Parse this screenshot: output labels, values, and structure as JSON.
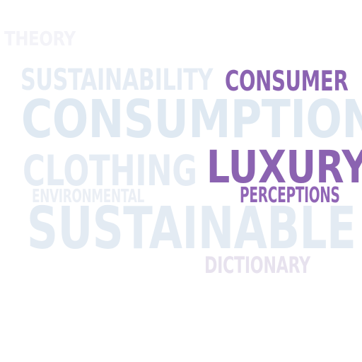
{
  "word_cloud": {
    "words": [
      {
        "key": "theory",
        "text": "THEORY",
        "color": "#f3f3f8",
        "emphasis": "faint"
      },
      {
        "key": "sustainability",
        "text": "SUSTAINABILITY",
        "color": "#e5ecf4",
        "emphasis": "faint"
      },
      {
        "key": "consumer",
        "text": "CONSUMER",
        "color": "#8b63b1",
        "emphasis": "highlight"
      },
      {
        "key": "consumption",
        "text": "CONSUMPTION",
        "color": "#dfe9f2",
        "emphasis": "faint"
      },
      {
        "key": "clothing",
        "text": "CLOTHING",
        "color": "#e5ecf4",
        "emphasis": "faint"
      },
      {
        "key": "luxury",
        "text": "LUXURY",
        "color": "#8b63b1",
        "emphasis": "highlight"
      },
      {
        "key": "environmental",
        "text": "ENVIRONMENTAL",
        "color": "#ebeff5",
        "emphasis": "faint"
      },
      {
        "key": "perceptions",
        "text": "PERCEPTIONS",
        "color": "#9166b6",
        "emphasis": "highlight"
      },
      {
        "key": "sustainable",
        "text": "SUSTAINABLE",
        "color": "#e3ebf3",
        "emphasis": "faint"
      },
      {
        "key": "dictionary",
        "text": "DICTIONARY",
        "color": "#e7e2ee",
        "emphasis": "faint"
      }
    ]
  }
}
